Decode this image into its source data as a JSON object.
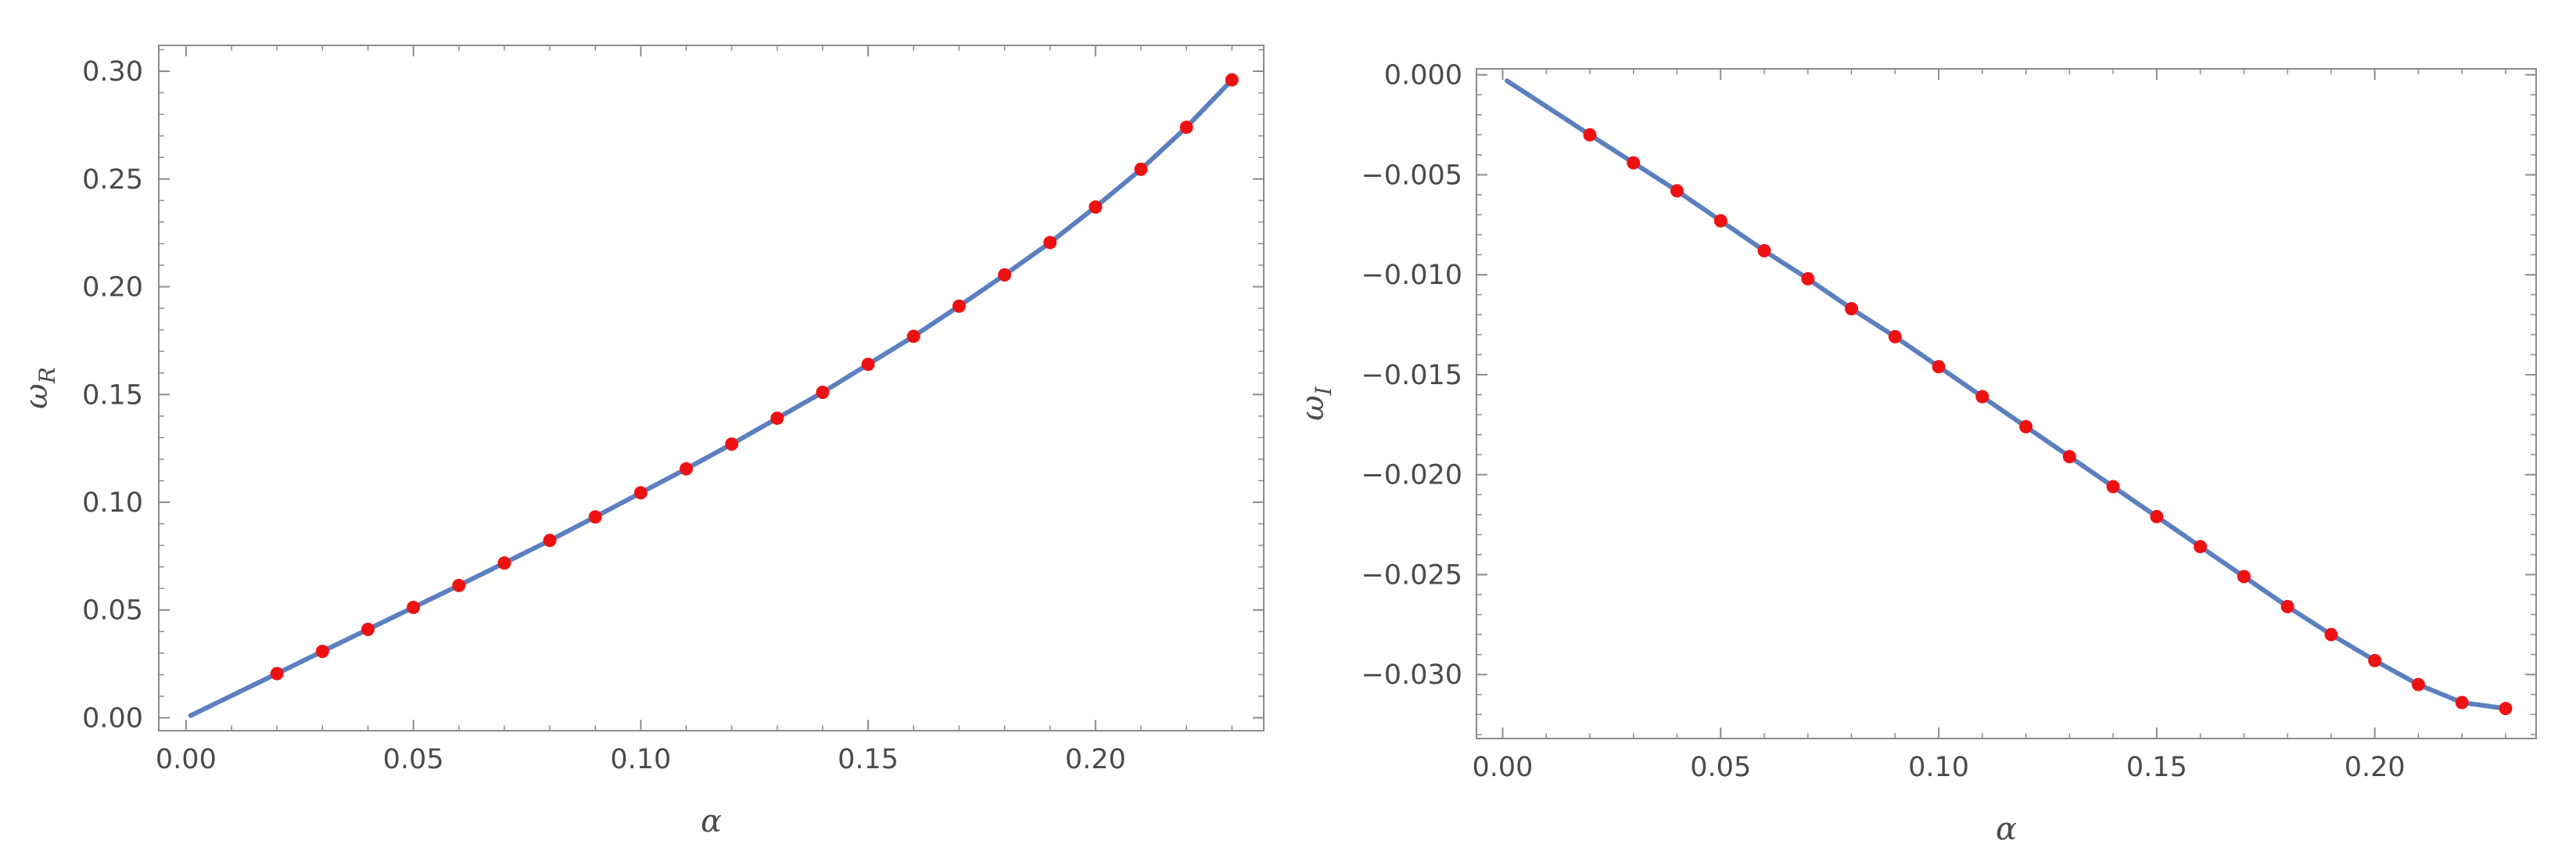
{
  "chart_data": [
    {
      "type": "line",
      "xlabel": "α",
      "ylabel": "ω",
      "ylabel_sub": "R",
      "xlim": [
        -0.006,
        0.237
      ],
      "ylim": [
        -0.006,
        0.312
      ],
      "x_ticks": [
        0.0,
        0.05,
        0.1,
        0.15,
        0.2
      ],
      "x_tick_labels": [
        "0.00",
        "0.05",
        "0.10",
        "0.15",
        "0.20"
      ],
      "y_ticks": [
        0.0,
        0.05,
        0.1,
        0.15,
        0.2,
        0.25,
        0.3
      ],
      "y_tick_labels": [
        "0.00",
        "0.05",
        "0.10",
        "0.15",
        "0.20",
        "0.25",
        "0.30"
      ],
      "grid": false,
      "series": [
        {
          "style": "line",
          "color": "#5b7fbf",
          "x": [
            0.001,
            0.02,
            0.03,
            0.04,
            0.05,
            0.06,
            0.07,
            0.08,
            0.09,
            0.1,
            0.11,
            0.12,
            0.13,
            0.14,
            0.15,
            0.16,
            0.17,
            0.18,
            0.19,
            0.2,
            0.21,
            0.22,
            0.23
          ],
          "y": [
            0.001,
            0.0205,
            0.0308,
            0.041,
            0.0512,
            0.0614,
            0.0718,
            0.0823,
            0.0932,
            0.1044,
            0.1155,
            0.127,
            0.139,
            0.151,
            0.164,
            0.177,
            0.191,
            0.2055,
            0.2205,
            0.237,
            0.2545,
            0.274,
            0.296
          ]
        },
        {
          "style": "markers",
          "color": "#ee1111",
          "x": [
            0.02,
            0.03,
            0.04,
            0.05,
            0.06,
            0.07,
            0.08,
            0.09,
            0.1,
            0.11,
            0.12,
            0.13,
            0.14,
            0.15,
            0.16,
            0.17,
            0.18,
            0.19,
            0.2,
            0.21,
            0.22,
            0.23
          ],
          "y": [
            0.0205,
            0.0308,
            0.041,
            0.0512,
            0.0614,
            0.0718,
            0.0823,
            0.0932,
            0.1044,
            0.1155,
            0.127,
            0.139,
            0.151,
            0.164,
            0.177,
            0.191,
            0.2055,
            0.2205,
            0.237,
            0.2545,
            0.274,
            0.296
          ]
        }
      ]
    },
    {
      "type": "line",
      "xlabel": "α",
      "ylabel": "ω",
      "ylabel_sub": "I",
      "xlim": [
        -0.006,
        0.237
      ],
      "ylim": [
        -0.0332,
        0.0003
      ],
      "x_ticks": [
        0.0,
        0.05,
        0.1,
        0.15,
        0.2
      ],
      "x_tick_labels": [
        "0.00",
        "0.05",
        "0.10",
        "0.15",
        "0.20"
      ],
      "y_ticks": [
        0.0,
        -0.005,
        -0.01,
        -0.015,
        -0.02,
        -0.025,
        -0.03
      ],
      "y_tick_labels": [
        "0.000",
        "−0.005",
        "−0.010",
        "−0.015",
        "−0.020",
        "−0.025",
        "−0.030"
      ],
      "grid": false,
      "series": [
        {
          "style": "line",
          "color": "#5b7fbf",
          "x": [
            0.001,
            0.02,
            0.03,
            0.04,
            0.05,
            0.06,
            0.07,
            0.08,
            0.09,
            0.1,
            0.11,
            0.12,
            0.13,
            0.14,
            0.15,
            0.16,
            0.17,
            0.18,
            0.19,
            0.2,
            0.21,
            0.22,
            0.23
          ],
          "y": [
            -0.0003,
            -0.003,
            -0.0044,
            -0.0058,
            -0.0073,
            -0.0088,
            -0.0102,
            -0.0117,
            -0.0131,
            -0.0146,
            -0.0161,
            -0.0176,
            -0.0191,
            -0.0206,
            -0.0221,
            -0.0236,
            -0.0251,
            -0.0266,
            -0.028,
            -0.0293,
            -0.0305,
            -0.0314,
            -0.0317
          ]
        },
        {
          "style": "markers",
          "color": "#ee1111",
          "x": [
            0.02,
            0.03,
            0.04,
            0.05,
            0.06,
            0.07,
            0.08,
            0.09,
            0.1,
            0.11,
            0.12,
            0.13,
            0.14,
            0.15,
            0.16,
            0.17,
            0.18,
            0.19,
            0.2,
            0.21,
            0.22,
            0.23
          ],
          "y": [
            -0.003,
            -0.0044,
            -0.0058,
            -0.0073,
            -0.0088,
            -0.0102,
            -0.0117,
            -0.0131,
            -0.0146,
            -0.0161,
            -0.0176,
            -0.0191,
            -0.0206,
            -0.0221,
            -0.0236,
            -0.0251,
            -0.0266,
            -0.028,
            -0.0293,
            -0.0305,
            -0.0314,
            -0.0317
          ]
        }
      ]
    }
  ]
}
